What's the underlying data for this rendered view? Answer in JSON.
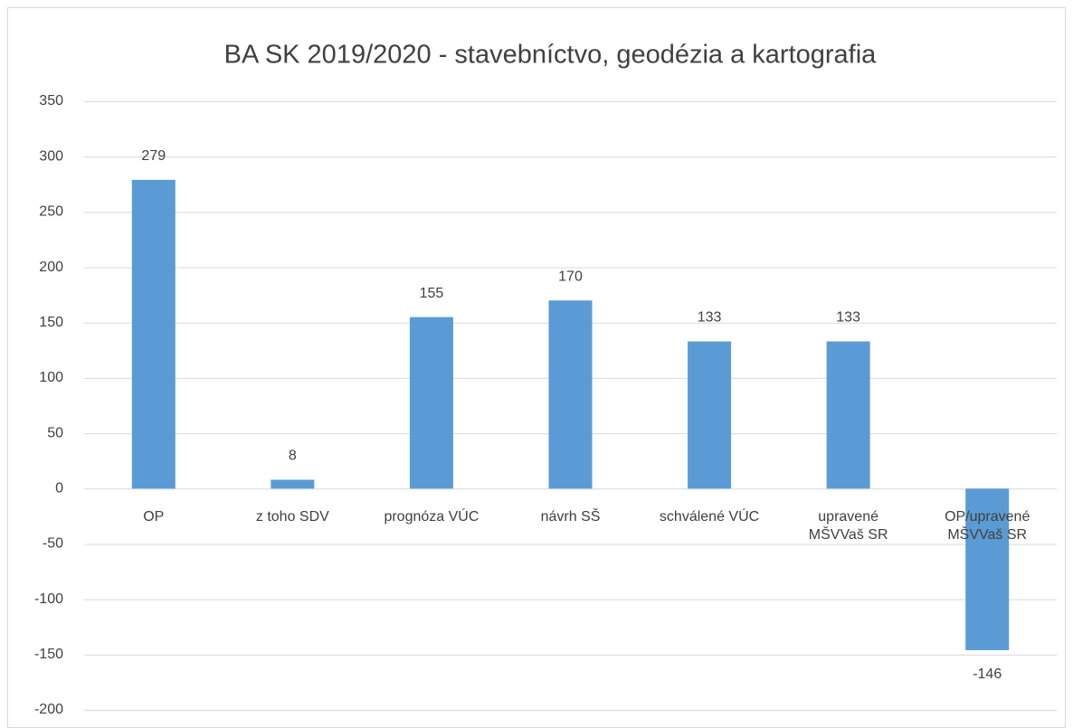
{
  "chart_data": {
    "type": "bar",
    "title": "BA SK 2019/2020 - stavebníctvo, geodézia a kartografia",
    "categories": [
      "OP",
      "z toho SDV",
      "prognóza VÚC",
      "návrh SŠ",
      "schválené VÚC",
      "upravené MŠVVaš SR",
      "OP/upravené MŠVVaš SR"
    ],
    "values": [
      279,
      8,
      155,
      170,
      133,
      133,
      -146
    ],
    "color": "#5b9bd5",
    "ylim": [
      -200,
      350
    ],
    "yticks": [
      -200,
      -150,
      -100,
      -50,
      0,
      50,
      100,
      150,
      200,
      250,
      300,
      350
    ],
    "grid": true
  }
}
